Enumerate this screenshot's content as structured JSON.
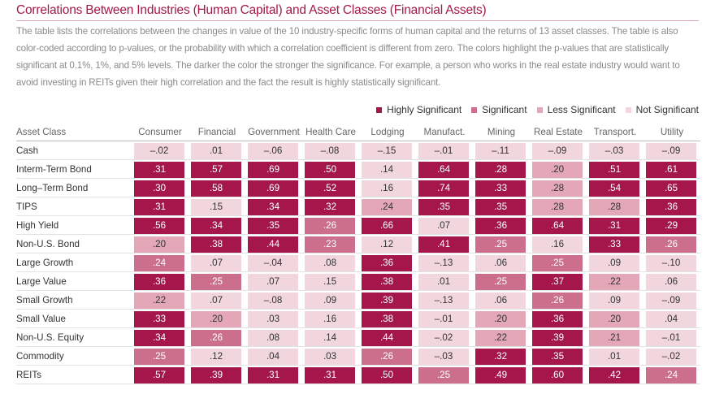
{
  "title": "Correlations Between Industries (Human Capital) and Asset Classes (Financial Assets)",
  "description": "The table lists the correlations between the changes in value of the 10 industry-specific forms of human capital and the returns of 13 asset classes. The table is also color-coded according to p-values, or the probability with which a correlation coefficient is different from zero. The colors highlight the p-values that are statistically significant at 0.1%, 1%, and 5% levels. The darker the color the stronger the significance. For example, a person who works in the real estate industry would want to avoid investing in REITs given their high correlation and the fact the result is highly statistically significant.",
  "legend": [
    {
      "label": "Highly Significant",
      "color": "#a5174a"
    },
    {
      "label": "Significant",
      "color": "#cc6f8c"
    },
    {
      "label": "Less Significant",
      "color": "#e3a7b7"
    },
    {
      "label": "Not Significant",
      "color": "#f2d6de"
    }
  ],
  "table": {
    "corner_header": "Asset Class",
    "columns": [
      "Consumer",
      "Financial",
      "Government",
      "Health Care",
      "Lodging",
      "Manufact.",
      "Mining",
      "Real Estate",
      "Transport.",
      "Utility"
    ],
    "rows": [
      {
        "label": "Cash",
        "cells": [
          [
            "–.02",
            "ns"
          ],
          [
            ".01",
            "ns"
          ],
          [
            "–.06",
            "ns"
          ],
          [
            "–.08",
            "ns"
          ],
          [
            "–.15",
            "ns"
          ],
          [
            "–.01",
            "ns"
          ],
          [
            "–.11",
            "ns"
          ],
          [
            "–.09",
            "ns"
          ],
          [
            "–.03",
            "ns"
          ],
          [
            "–.09",
            "ns"
          ]
        ]
      },
      {
        "label": "Interm-Term Bond",
        "cells": [
          [
            ".31",
            "hs"
          ],
          [
            ".57",
            "hs"
          ],
          [
            ".69",
            "hs"
          ],
          [
            ".50",
            "hs"
          ],
          [
            ".14",
            "ns"
          ],
          [
            ".64",
            "hs"
          ],
          [
            ".28",
            "hs"
          ],
          [
            ".20",
            "ls"
          ],
          [
            ".51",
            "hs"
          ],
          [
            ".61",
            "hs"
          ]
        ]
      },
      {
        "label": "Long–Term Bond",
        "cells": [
          [
            ".30",
            "hs"
          ],
          [
            ".58",
            "hs"
          ],
          [
            ".69",
            "hs"
          ],
          [
            ".52",
            "hs"
          ],
          [
            ".16",
            "ns"
          ],
          [
            ".74",
            "hs"
          ],
          [
            ".33",
            "hs"
          ],
          [
            ".28",
            "ls"
          ],
          [
            ".54",
            "hs"
          ],
          [
            ".65",
            "hs"
          ]
        ]
      },
      {
        "label": "TIPS",
        "cells": [
          [
            ".31",
            "hs"
          ],
          [
            ".15",
            "ns"
          ],
          [
            ".34",
            "hs"
          ],
          [
            ".32",
            "hs"
          ],
          [
            ".24",
            "ls"
          ],
          [
            ".35",
            "hs"
          ],
          [
            ".35",
            "hs"
          ],
          [
            ".28",
            "ls"
          ],
          [
            ".28",
            "ls"
          ],
          [
            ".36",
            "hs"
          ]
        ]
      },
      {
        "label": "High Yield",
        "cells": [
          [
            ".56",
            "hs"
          ],
          [
            ".34",
            "hs"
          ],
          [
            ".35",
            "hs"
          ],
          [
            ".26",
            "s"
          ],
          [
            ".66",
            "hs"
          ],
          [
            ".07",
            "ns"
          ],
          [
            ".36",
            "hs"
          ],
          [
            ".64",
            "hs"
          ],
          [
            ".31",
            "hs"
          ],
          [
            ".29",
            "hs"
          ]
        ]
      },
      {
        "label": "Non-U.S. Bond",
        "cells": [
          [
            ".20",
            "ls"
          ],
          [
            ".38",
            "hs"
          ],
          [
            ".44",
            "hs"
          ],
          [
            ".23",
            "s"
          ],
          [
            ".12",
            "ns"
          ],
          [
            ".41",
            "hs"
          ],
          [
            ".25",
            "s"
          ],
          [
            ".16",
            "ns"
          ],
          [
            ".33",
            "hs"
          ],
          [
            ".26",
            "s"
          ]
        ]
      },
      {
        "label": "Large Growth",
        "cells": [
          [
            ".24",
            "s"
          ],
          [
            ".07",
            "ns"
          ],
          [
            "–.04",
            "ns"
          ],
          [
            ".08",
            "ns"
          ],
          [
            ".36",
            "hs"
          ],
          [
            "–.13",
            "ns"
          ],
          [
            ".06",
            "ns"
          ],
          [
            ".25",
            "s"
          ],
          [
            ".09",
            "ns"
          ],
          [
            "–.10",
            "ns"
          ]
        ]
      },
      {
        "label": "Large Value",
        "cells": [
          [
            ".36",
            "hs"
          ],
          [
            ".25",
            "s"
          ],
          [
            ".07",
            "ns"
          ],
          [
            ".15",
            "ns"
          ],
          [
            ".38",
            "hs"
          ],
          [
            ".01",
            "ns"
          ],
          [
            ".25",
            "s"
          ],
          [
            ".37",
            "hs"
          ],
          [
            ".22",
            "ls"
          ],
          [
            ".06",
            "ns"
          ]
        ]
      },
      {
        "label": "Small Growth",
        "cells": [
          [
            ".22",
            "ls"
          ],
          [
            ".07",
            "ns"
          ],
          [
            "–.08",
            "ns"
          ],
          [
            ".09",
            "ns"
          ],
          [
            ".39",
            "hs"
          ],
          [
            "–.13",
            "ns"
          ],
          [
            ".06",
            "ns"
          ],
          [
            ".26",
            "s"
          ],
          [
            ".09",
            "ns"
          ],
          [
            "–.09",
            "ns"
          ]
        ]
      },
      {
        "label": "Small Value",
        "cells": [
          [
            ".33",
            "hs"
          ],
          [
            ".20",
            "ls"
          ],
          [
            ".03",
            "ns"
          ],
          [
            ".16",
            "ns"
          ],
          [
            ".38",
            "hs"
          ],
          [
            "–.01",
            "ns"
          ],
          [
            ".20",
            "ls"
          ],
          [
            ".36",
            "hs"
          ],
          [
            ".20",
            "ls"
          ],
          [
            ".04",
            "ns"
          ]
        ]
      },
      {
        "label": "Non-U.S. Equity",
        "cells": [
          [
            ".34",
            "hs"
          ],
          [
            ".26",
            "s"
          ],
          [
            ".08",
            "ns"
          ],
          [
            ".14",
            "ns"
          ],
          [
            ".44",
            "hs"
          ],
          [
            "–.02",
            "ns"
          ],
          [
            ".22",
            "ls"
          ],
          [
            ".39",
            "hs"
          ],
          [
            ".21",
            "ls"
          ],
          [
            "–.01",
            "ns"
          ]
        ]
      },
      {
        "label": "Commodity",
        "cells": [
          [
            ".25",
            "s"
          ],
          [
            ".12",
            "ns"
          ],
          [
            ".04",
            "ns"
          ],
          [
            ".03",
            "ns"
          ],
          [
            ".26",
            "s"
          ],
          [
            "–.03",
            "ns"
          ],
          [
            ".32",
            "hs"
          ],
          [
            ".35",
            "hs"
          ],
          [
            ".01",
            "ns"
          ],
          [
            "–.02",
            "ns"
          ]
        ]
      },
      {
        "label": "REITs",
        "cells": [
          [
            ".57",
            "hs"
          ],
          [
            ".39",
            "hs"
          ],
          [
            ".31",
            "hs"
          ],
          [
            ".31",
            "hs"
          ],
          [
            ".50",
            "hs"
          ],
          [
            ".25",
            "s"
          ],
          [
            ".49",
            "hs"
          ],
          [
            ".60",
            "hs"
          ],
          [
            ".42",
            "hs"
          ],
          [
            ".24",
            "s"
          ]
        ]
      }
    ]
  }
}
